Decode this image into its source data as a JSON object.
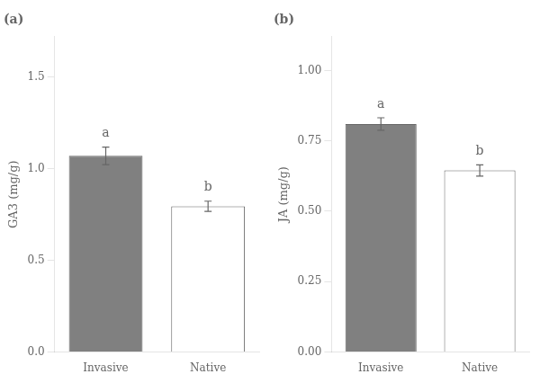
{
  "chart_data": [
    {
      "type": "bar",
      "title": "(a)",
      "ylabel": "GA3 (mg/g)",
      "categories": [
        "Invasive",
        "Native"
      ],
      "values": [
        1.07,
        0.795
      ],
      "errors": [
        0.048,
        0.028
      ],
      "colors": [
        "#808080",
        "#ffffff"
      ],
      "ylim": [
        0.0,
        1.72
      ],
      "yticks": [
        {
          "value": 0.0,
          "label": "0.0"
        },
        0.5,
        {
          "value": 1.0,
          "label": "1.0"
        },
        1.5
      ],
      "annotations": [
        {
          "text": "a",
          "x": "Invasive"
        },
        {
          "text": "b",
          "x": "Native"
        }
      ],
      "grid": false
    },
    {
      "type": "bar",
      "title": "(b)",
      "ylabel": "JA (mg/g)",
      "categories": [
        "Invasive",
        "Native"
      ],
      "values": [
        0.81,
        0.645
      ],
      "errors": [
        0.022,
        0.02
      ],
      "colors": [
        "#808080",
        "#ffffff"
      ],
      "ylim": [
        0.0,
        1.12
      ],
      "yticks": [
        {
          "value": 0.0,
          "label": "0.00"
        },
        0.25,
        {
          "value": 0.5,
          "label": "0.50"
        },
        0.75,
        {
          "value": 1.0,
          "label": "1.00"
        }
      ],
      "annotations": [
        {
          "text": "a",
          "x": "Invasive"
        },
        {
          "text": "b",
          "x": "Native"
        }
      ],
      "grid": false
    }
  ]
}
